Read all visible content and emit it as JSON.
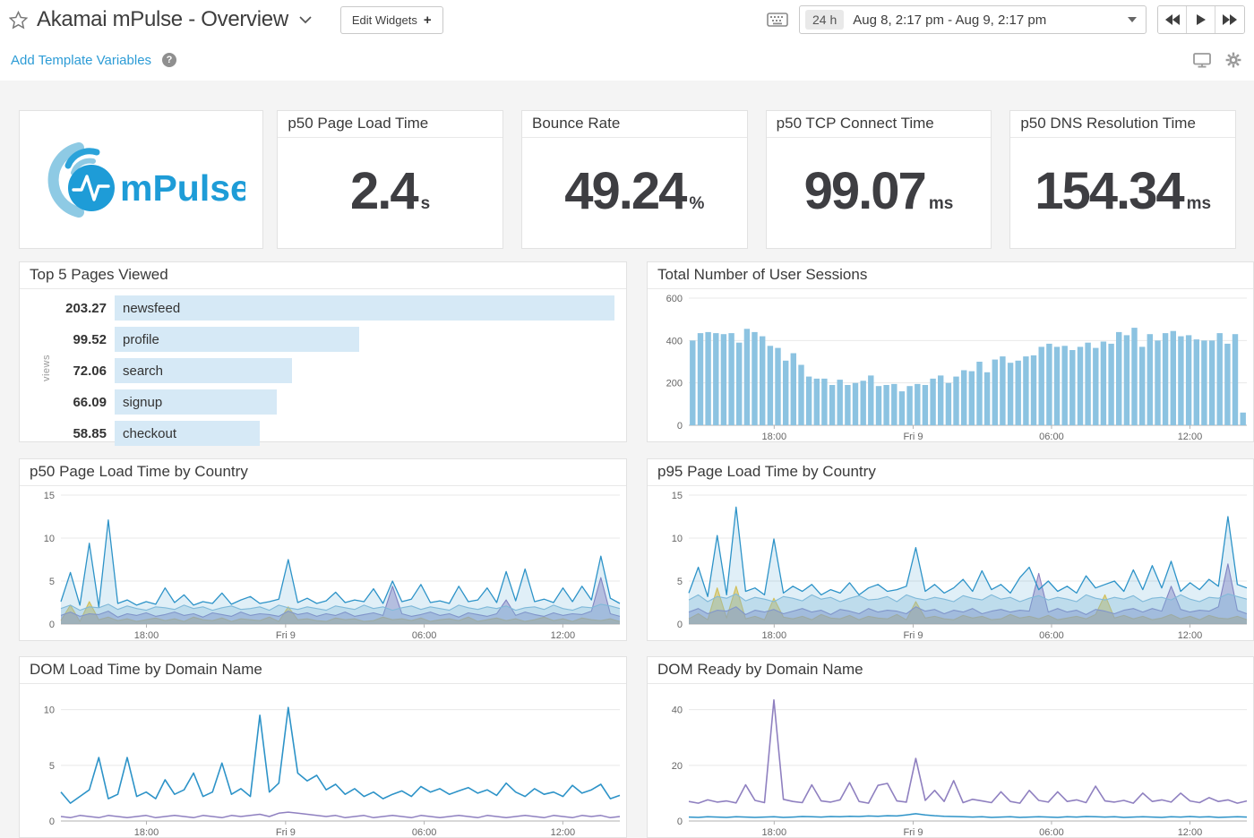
{
  "header": {
    "title": "Akamai mPulse - Overview",
    "edit_widgets": "Edit Widgets",
    "edit_widgets_plus": "+",
    "timepicker": {
      "duration": "24 h",
      "range": "Aug 8, 2:17 pm - Aug 9, 2:17 pm"
    },
    "subbar": {
      "add_template_variables": "Add Template Variables",
      "help_glyph": "?"
    }
  },
  "logo": {
    "wordmark": "mPulse",
    "brand_color": "#1e9cd7",
    "light_color": "#8ecae4"
  },
  "query_values": [
    {
      "title": "p50 Page Load Time",
      "value": "2.4",
      "unit": "s"
    },
    {
      "title": "Bounce Rate",
      "value": "49.24",
      "unit": "%"
    },
    {
      "title": "p50 TCP Connect Time",
      "value": "99.07",
      "unit": "ms"
    },
    {
      "title": "p50 DNS Resolution Time",
      "value": "154.34",
      "unit": "ms"
    }
  ],
  "colors": {
    "link_blue": "#2d9cd6",
    "session_bar": "#8cc3e1",
    "hbar_fill": "#d6e9f6",
    "line_blue": "#2d93c8",
    "line_light_blue": "#8fc0dc",
    "line_purple": "#8f80c0",
    "line_yellow": "#eec645"
  },
  "chart_data": [
    {
      "id": "top-pages",
      "type": "hbar",
      "title": "Top 5 Pages Viewed",
      "ylabel": "views",
      "bar_color": "#d6e9f6",
      "rows": [
        {
          "value": "203.27",
          "label": "newsfeed"
        },
        {
          "value": "99.52",
          "label": "profile"
        },
        {
          "value": "72.06",
          "label": "search"
        },
        {
          "value": "66.09",
          "label": "signup"
        },
        {
          "value": "58.85",
          "label": "checkout"
        }
      ]
    },
    {
      "id": "user-sessions",
      "type": "bar",
      "title": "Total Number of User Sessions",
      "ylim": [
        0,
        600
      ],
      "yticks": [
        0,
        200,
        400,
        600
      ],
      "bar_color": "#8cc3e1",
      "xticks": [
        {
          "label": "18:00",
          "f": 0.153
        },
        {
          "label": "Fri 9",
          "f": 0.402
        },
        {
          "label": "06:00",
          "f": 0.65
        },
        {
          "label": "12:00",
          "f": 0.898
        }
      ],
      "values": [
        400,
        435,
        440,
        435,
        430,
        435,
        390,
        455,
        440,
        420,
        375,
        365,
        305,
        340,
        285,
        230,
        220,
        220,
        190,
        215,
        190,
        200,
        210,
        235,
        185,
        190,
        195,
        160,
        185,
        195,
        190,
        220,
        235,
        200,
        230,
        260,
        255,
        300,
        250,
        310,
        325,
        295,
        305,
        325,
        330,
        370,
        385,
        370,
        375,
        355,
        370,
        390,
        365,
        395,
        385,
        440,
        425,
        460,
        370,
        430,
        400,
        435,
        445,
        420,
        425,
        405,
        400,
        400,
        435,
        385,
        430,
        60
      ]
    },
    {
      "id": "p50-country",
      "type": "area",
      "title": "p50 Page Load Time by Country",
      "ylim": [
        0,
        15
      ],
      "yticks": [
        0,
        5,
        10,
        15
      ],
      "xticks": [
        {
          "label": "18:00",
          "f": 0.153
        },
        {
          "label": "Fri 9",
          "f": 0.402
        },
        {
          "label": "06:00",
          "f": 0.65
        },
        {
          "label": "12:00",
          "f": 0.898
        }
      ],
      "series": [
        {
          "name": "country-series-yellow",
          "color": "#eec645",
          "fill": 0.6,
          "width": 1.1,
          "points": [
            0.4,
            2.2,
            0.3,
            2.6,
            0.5,
            0.8,
            0.4,
            0.6,
            0.3,
            0.5,
            0.7,
            0.4,
            0.6,
            0.3,
            0.8,
            0.5,
            0.4,
            0.7,
            0.3,
            0.6,
            0.5,
            0.4,
            0.8,
            0.3,
            2.0,
            0.5,
            0.6,
            0.4,
            0.3,
            0.7,
            0.5,
            0.6,
            0.3,
            0.4,
            0.8,
            0.5,
            0.6,
            0.4,
            0.7,
            0.3,
            0.5,
            0.6,
            0.4,
            0.8,
            0.3,
            0.5,
            0.7,
            0.4,
            0.6,
            0.3,
            0.5,
            0.8,
            0.4,
            0.6,
            0.3,
            0.7,
            0.5,
            0.4,
            0.6,
            0.3
          ]
        },
        {
          "name": "country-series-purple",
          "color": "#8f80c0",
          "fill": 0.45,
          "width": 1.1,
          "points": [
            1.0,
            1.4,
            0.9,
            1.2,
            1.1,
            1.5,
            0.8,
            1.2,
            1.0,
            1.3,
            0.9,
            1.1,
            1.4,
            1.0,
            1.2,
            0.8,
            1.3,
            1.1,
            0.9,
            1.4,
            1.0,
            1.2,
            1.1,
            0.9,
            1.5,
            1.1,
            1.3,
            0.9,
            1.2,
            1.0,
            1.4,
            0.9,
            1.1,
            1.3,
            1.0,
            4.4,
            1.2,
            0.9,
            1.1,
            1.4,
            1.0,
            1.2,
            0.8,
            1.3,
            1.1,
            0.9,
            1.2,
            2.8,
            1.0,
            1.4,
            1.1,
            0.9,
            1.3,
            1.0,
            1.2,
            1.1,
            1.5,
            5.4,
            1.2,
            0.9
          ]
        },
        {
          "name": "country-series-lightblue",
          "color": "#8fc0dc",
          "fill": 0.35,
          "width": 1.1,
          "points": [
            1.8,
            2.2,
            1.6,
            2.0,
            1.9,
            2.3,
            1.7,
            2.1,
            1.8,
            1.6,
            2.0,
            1.9,
            1.7,
            2.2,
            1.8,
            2.0,
            1.6,
            1.9,
            2.1,
            1.7,
            1.8,
            2.0,
            1.6,
            2.2,
            1.9,
            1.7,
            2.0,
            1.8,
            1.6,
            2.1,
            1.9,
            1.7,
            2.2,
            1.8,
            2.0,
            1.6,
            1.9,
            2.1,
            1.7,
            2.0,
            1.8,
            1.6,
            2.2,
            1.9,
            1.7,
            2.0,
            1.8,
            2.1,
            1.6,
            1.9,
            2.0,
            1.7,
            2.2,
            1.8,
            1.6,
            2.0,
            1.9,
            2.3,
            2.1,
            1.8
          ]
        },
        {
          "name": "country-series-blue",
          "color": "#2d93c8",
          "fill": 0.15,
          "width": 1.3,
          "points": [
            2.6,
            6.0,
            2.2,
            9.4,
            2.0,
            12.1,
            2.4,
            2.8,
            2.2,
            2.6,
            2.3,
            4.2,
            2.5,
            3.4,
            2.2,
            2.6,
            2.4,
            3.6,
            2.3,
            2.8,
            3.2,
            2.4,
            2.6,
            2.9,
            7.5,
            2.5,
            3.0,
            2.4,
            2.7,
            3.7,
            2.5,
            2.8,
            2.6,
            4.1,
            2.4,
            5.0,
            2.6,
            2.9,
            4.6,
            2.5,
            2.7,
            2.4,
            4.4,
            2.6,
            2.8,
            4.2,
            2.5,
            6.1,
            2.7,
            6.4,
            2.6,
            2.9,
            2.5,
            4.2,
            2.6,
            4.4,
            2.8,
            7.9,
            3.0,
            2.4
          ]
        }
      ]
    },
    {
      "id": "p95-country",
      "type": "area",
      "title": "p95 Page Load Time by Country",
      "ylim": [
        0,
        15
      ],
      "yticks": [
        0,
        5,
        10,
        15
      ],
      "xticks": [
        {
          "label": "18:00",
          "f": 0.153
        },
        {
          "label": "Fri 9",
          "f": 0.402
        },
        {
          "label": "06:00",
          "f": 0.65
        },
        {
          "label": "12:00",
          "f": 0.898
        }
      ],
      "series": [
        {
          "name": "country-series-yellow",
          "color": "#eec645",
          "fill": 0.6,
          "width": 1.1,
          "points": [
            0.6,
            1.2,
            0.5,
            4.2,
            0.7,
            4.4,
            0.6,
            0.9,
            0.5,
            3.0,
            0.8,
            0.6,
            0.9,
            0.5,
            1.1,
            0.7,
            0.6,
            1.0,
            0.5,
            0.9,
            0.7,
            0.6,
            1.1,
            0.5,
            2.6,
            0.7,
            0.9,
            0.6,
            0.5,
            1.0,
            0.7,
            0.9,
            0.5,
            0.6,
            1.1,
            0.7,
            0.9,
            0.6,
            1.0,
            0.5,
            0.7,
            0.9,
            0.6,
            1.1,
            3.4,
            0.7,
            1.0,
            0.6,
            0.9,
            0.5,
            0.7,
            1.1,
            0.6,
            0.9,
            0.5,
            1.0,
            0.7,
            0.6,
            0.9,
            0.5
          ]
        },
        {
          "name": "country-series-purple",
          "color": "#8f80c0",
          "fill": 0.45,
          "width": 1.1,
          "points": [
            1.4,
            1.8,
            1.2,
            1.6,
            1.5,
            2.0,
            1.1,
            1.6,
            1.4,
            1.7,
            1.2,
            1.5,
            1.8,
            1.4,
            1.6,
            1.1,
            1.7,
            1.5,
            1.2,
            1.8,
            1.4,
            1.6,
            1.5,
            1.2,
            2.0,
            1.5,
            1.7,
            1.2,
            1.6,
            1.4,
            1.8,
            1.2,
            1.5,
            1.7,
            1.4,
            1.6,
            1.5,
            5.9,
            1.4,
            1.8,
            1.4,
            1.6,
            1.1,
            1.7,
            1.5,
            1.2,
            1.6,
            1.8,
            1.4,
            1.8,
            1.5,
            4.4,
            1.7,
            1.4,
            1.6,
            1.5,
            2.0,
            7.0,
            1.6,
            1.2
          ]
        },
        {
          "name": "country-series-lightblue",
          "color": "#8fc0dc",
          "fill": 0.35,
          "width": 1.1,
          "points": [
            2.8,
            3.4,
            2.6,
            3.2,
            3.0,
            3.5,
            2.7,
            3.1,
            2.9,
            2.6,
            3.2,
            3.0,
            2.7,
            3.4,
            2.9,
            3.1,
            2.6,
            3.0,
            3.3,
            2.8,
            2.9,
            3.2,
            2.6,
            3.4,
            3.0,
            2.8,
            3.1,
            2.9,
            2.6,
            3.3,
            3.0,
            2.8,
            3.4,
            2.9,
            3.1,
            2.6,
            3.0,
            3.3,
            2.8,
            3.1,
            2.9,
            2.6,
            3.4,
            3.0,
            2.8,
            3.1,
            2.9,
            3.3,
            2.6,
            3.0,
            3.1,
            2.8,
            3.4,
            2.9,
            2.6,
            3.1,
            3.0,
            3.5,
            3.2,
            2.9
          ]
        },
        {
          "name": "country-series-blue",
          "color": "#2d93c8",
          "fill": 0.15,
          "width": 1.3,
          "points": [
            3.6,
            6.6,
            3.2,
            10.3,
            3.4,
            13.6,
            3.8,
            4.2,
            3.4,
            9.9,
            3.6,
            4.4,
            3.8,
            4.6,
            3.4,
            4.0,
            3.6,
            4.8,
            3.4,
            4.2,
            4.6,
            3.8,
            4.0,
            4.4,
            8.9,
            3.8,
            4.6,
            3.6,
            4.2,
            5.2,
            3.8,
            6.2,
            4.0,
            4.6,
            3.6,
            5.4,
            6.6,
            4.0,
            5.0,
            3.8,
            4.4,
            3.6,
            5.6,
            4.2,
            4.6,
            5.0,
            3.8,
            6.3,
            4.0,
            6.8,
            4.2,
            7.3,
            3.8,
            4.8,
            4.0,
            5.2,
            4.4,
            12.5,
            4.6,
            4.2
          ]
        }
      ]
    },
    {
      "id": "dom-load",
      "type": "line",
      "title": "DOM Load Time by Domain Name",
      "ylim": [
        0,
        11.5
      ],
      "yticks": [
        0,
        5,
        10
      ],
      "xticks": [
        {
          "label": "18:00",
          "f": 0.153
        },
        {
          "label": "Fri 9",
          "f": 0.402
        },
        {
          "label": "06:00",
          "f": 0.65
        },
        {
          "label": "12:00",
          "f": 0.898
        }
      ],
      "series": [
        {
          "name": "domain-series-purple",
          "color": "#8f80c0",
          "width": 1.5,
          "points": [
            0.4,
            0.3,
            0.5,
            0.4,
            0.3,
            0.5,
            0.4,
            0.3,
            0.4,
            0.5,
            0.3,
            0.4,
            0.5,
            0.4,
            0.3,
            0.5,
            0.4,
            0.3,
            0.5,
            0.4,
            0.5,
            0.6,
            0.4,
            0.7,
            0.8,
            0.7,
            0.6,
            0.5,
            0.4,
            0.5,
            0.3,
            0.4,
            0.5,
            0.3,
            0.4,
            0.5,
            0.4,
            0.3,
            0.5,
            0.4,
            0.3,
            0.4,
            0.5,
            0.4,
            0.3,
            0.5,
            0.4,
            0.3,
            0.4,
            0.5,
            0.4,
            0.3,
            0.5,
            0.4,
            0.3,
            0.5,
            0.4,
            0.5,
            0.3,
            0.4
          ]
        },
        {
          "name": "domain-series-blue",
          "color": "#2d93c8",
          "width": 1.6,
          "points": [
            2.6,
            1.6,
            2.2,
            2.8,
            5.7,
            2.0,
            2.4,
            5.7,
            2.2,
            2.6,
            2.0,
            3.7,
            2.4,
            2.8,
            4.3,
            2.2,
            2.6,
            5.2,
            2.4,
            2.9,
            2.2,
            9.5,
            2.6,
            3.4,
            10.2,
            4.3,
            3.6,
            4.1,
            2.8,
            3.3,
            2.4,
            2.9,
            2.2,
            2.6,
            2.0,
            2.4,
            2.7,
            2.2,
            3.1,
            2.6,
            2.9,
            2.4,
            2.7,
            3.0,
            2.5,
            2.8,
            2.3,
            3.4,
            2.6,
            2.2,
            2.9,
            2.4,
            2.6,
            2.2,
            3.2,
            2.5,
            2.8,
            3.3,
            2.0,
            2.3
          ]
        }
      ]
    },
    {
      "id": "dom-ready",
      "type": "line",
      "title": "DOM Ready by Domain Name",
      "ylim": [
        0,
        46
      ],
      "yticks": [
        0,
        20,
        40
      ],
      "xticks": [
        {
          "label": "18:00",
          "f": 0.153
        },
        {
          "label": "Fri 9",
          "f": 0.402
        },
        {
          "label": "06:00",
          "f": 0.65
        },
        {
          "label": "12:00",
          "f": 0.898
        }
      ],
      "series": [
        {
          "name": "domain-series-blue",
          "color": "#2d93c8",
          "width": 1.5,
          "points": [
            1.4,
            1.3,
            1.5,
            1.4,
            1.3,
            1.5,
            1.4,
            1.3,
            1.4,
            1.5,
            1.3,
            1.4,
            1.6,
            1.5,
            1.4,
            1.6,
            1.5,
            1.7,
            1.6,
            1.8,
            1.7,
            1.9,
            1.8,
            2.2,
            2.6,
            2.2,
            1.9,
            1.7,
            1.6,
            1.5,
            1.4,
            1.5,
            1.3,
            1.4,
            1.5,
            1.3,
            1.4,
            1.5,
            1.4,
            1.3,
            1.5,
            1.4,
            1.6,
            1.5,
            1.4,
            1.5,
            1.3,
            1.4,
            1.5,
            1.4,
            1.3,
            1.5,
            1.4,
            1.6,
            1.4,
            1.5,
            1.3,
            1.4,
            1.5,
            1.4
          ]
        },
        {
          "name": "domain-series-purple",
          "color": "#8f80c0",
          "width": 1.6,
          "points": [
            7.0,
            6.4,
            7.6,
            6.8,
            7.2,
            6.5,
            13.0,
            7.4,
            6.6,
            43.5,
            7.8,
            7.0,
            6.6,
            13.0,
            7.2,
            6.8,
            7.6,
            13.8,
            7.0,
            6.4,
            12.8,
            13.5,
            7.2,
            6.8,
            22.5,
            7.4,
            11.0,
            7.0,
            14.5,
            6.6,
            7.8,
            7.2,
            6.6,
            10.5,
            7.0,
            6.4,
            11.0,
            7.4,
            6.8,
            10.5,
            7.0,
            7.6,
            6.6,
            12.5,
            7.2,
            6.8,
            7.4,
            6.4,
            10.0,
            7.0,
            7.6,
            6.8,
            10.0,
            7.2,
            6.6,
            8.4,
            7.0,
            7.6,
            6.4,
            7.2
          ]
        }
      ]
    }
  ]
}
